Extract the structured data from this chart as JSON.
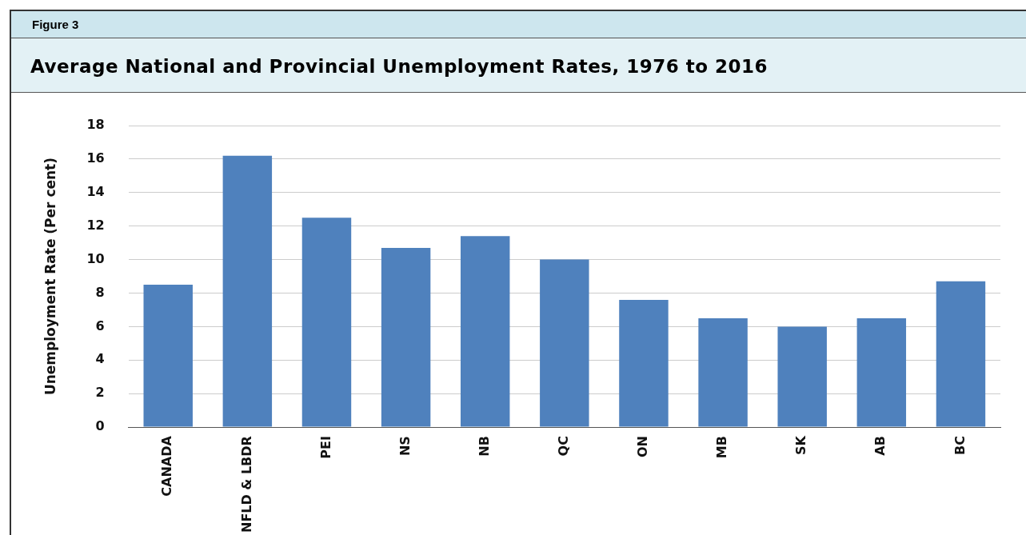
{
  "chart_data": {
    "type": "bar",
    "title": "Average National and Provincial Unemployment Rates, 1976 to 2016",
    "annotations": [
      "Figure 3"
    ],
    "ylabel": "Unemployment Rate (Per cent)",
    "categories": [
      "CANADA",
      "NFLD & LBDR",
      "PEI",
      "NS",
      "NB",
      "QC",
      "ON",
      "MB",
      "SK",
      "AB",
      "BC"
    ],
    "values": [
      8.5,
      16.2,
      12.5,
      10.7,
      11.4,
      10.0,
      7.6,
      6.5,
      6.0,
      6.5,
      8.7
    ],
    "color": "#4f81bd",
    "ylim": [
      0,
      18
    ],
    "yticks": [
      0,
      2,
      4,
      6,
      8,
      10,
      12,
      14,
      16,
      18
    ],
    "grid": "y",
    "legend": false
  }
}
